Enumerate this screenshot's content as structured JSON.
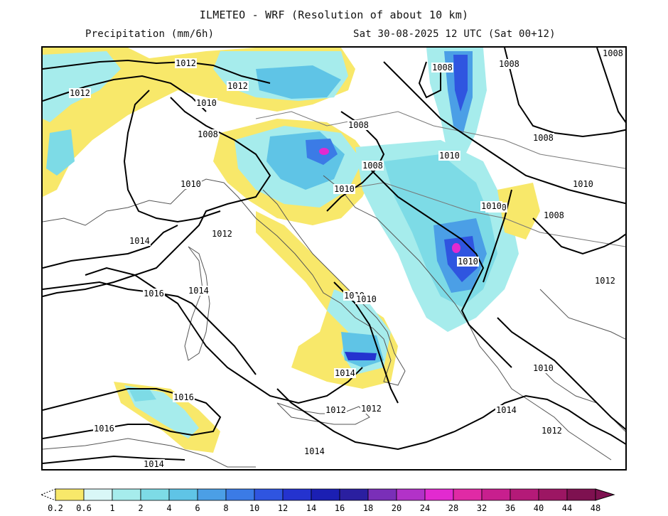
{
  "header": {
    "title": "ILMETEO - WRF (Resolution of about 10 km)",
    "variable": "Precipitation (mm/6h)",
    "valid_time": "Sat 30-08-2025 12 UTC (Sat 00+12)"
  },
  "colors": {
    "coast": "#555555",
    "isobar": "#000000",
    "levels": [
      "#ffffff",
      "#f8e86a",
      "#d9f7f7",
      "#a6ecec",
      "#7ddbe6",
      "#5fc4e6",
      "#4b9fe6",
      "#3b7be6",
      "#2f55e0",
      "#2433cf",
      "#1b1fb3",
      "#2a1fa0",
      "#7a2fb8",
      "#b232c8",
      "#e22ad0",
      "#e02aa5",
      "#c81f8e",
      "#b41a78",
      "#9c1663",
      "#7e1150"
    ]
  },
  "isobars": [
    {
      "label": "1012"
    },
    {
      "label": "1012"
    },
    {
      "label": "1012"
    },
    {
      "label": "1010"
    },
    {
      "label": "1008"
    },
    {
      "label": "1010"
    },
    {
      "label": "1014"
    },
    {
      "label": "1012"
    },
    {
      "label": "1016"
    },
    {
      "label": "1014"
    },
    {
      "label": "1016"
    },
    {
      "label": "1016"
    },
    {
      "label": "1014"
    },
    {
      "label": "1008"
    },
    {
      "label": "1008"
    },
    {
      "label": "1008"
    },
    {
      "label": "1010"
    },
    {
      "label": "1008"
    },
    {
      "label": "1010"
    },
    {
      "label": "1010"
    },
    {
      "label": "1010"
    },
    {
      "label": "1010"
    },
    {
      "label": "1010"
    },
    {
      "label": "1010"
    },
    {
      "label": "1008"
    },
    {
      "label": "1008"
    },
    {
      "label": "1008"
    },
    {
      "label": "1010"
    },
    {
      "label": "1012"
    },
    {
      "label": "1014"
    },
    {
      "label": "1012"
    },
    {
      "label": "1012"
    },
    {
      "label": "1014"
    },
    {
      "label": "1010"
    },
    {
      "label": "1012"
    },
    {
      "label": "1014"
    }
  ],
  "colorbar": {
    "labels": [
      "0.2",
      "0.6",
      "1",
      "2",
      "4",
      "6",
      "8",
      "10",
      "12",
      "14",
      "16",
      "18",
      "20",
      "24",
      "28",
      "32",
      "36",
      "40",
      "44",
      "48"
    ],
    "colors": [
      "#f8e86a",
      "#d9f7f7",
      "#a6ecec",
      "#7ddbe6",
      "#5fc4e6",
      "#4b9fe6",
      "#3b7be6",
      "#2f55e0",
      "#2433cf",
      "#1b1fb3",
      "#2a1fa0",
      "#7a2fb8",
      "#b232c8",
      "#e22ad0",
      "#e02aa5",
      "#c81f8e",
      "#b41a78",
      "#9c1663",
      "#7e1150"
    ]
  }
}
